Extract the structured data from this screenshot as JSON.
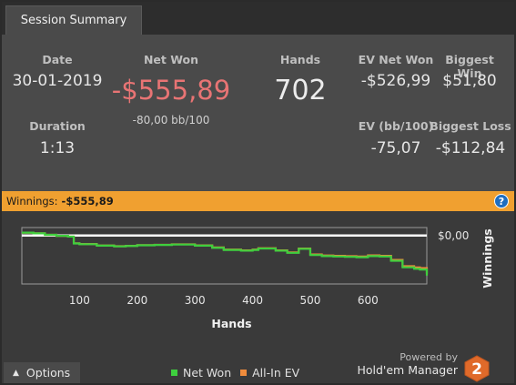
{
  "tab": {
    "label": "Session Summary"
  },
  "stats": {
    "date_label": "Date",
    "date_value": "30-01-2019",
    "net_won_label": "Net Won",
    "net_won_value": "-$555,89",
    "net_won_sub": "-80,00 bb/100",
    "hands_label": "Hands",
    "hands_value": "702",
    "ev_net_won_label": "EV Net Won",
    "ev_net_won_value": "-$526,99",
    "biggest_win_label": "Biggest Win",
    "biggest_win_value": "$51,80",
    "duration_label": "Duration",
    "duration_value": "1:13",
    "ev_bb_label": "EV (bb/100)",
    "ev_bb_value": "-75,07",
    "biggest_loss_label": "Biggest Loss",
    "biggest_loss_value": "-$112,84"
  },
  "winnings_bar": {
    "label": "Winnings:",
    "value": "-$555,89",
    "help_icon": "question-circle-icon"
  },
  "chart_data": {
    "type": "line",
    "xlabel": "Hands",
    "ylabel": "Winnings",
    "xlim": [
      0,
      702
    ],
    "ylim": [
      -620,
      60
    ],
    "x_ticks": [
      100,
      200,
      300,
      400,
      500,
      600
    ],
    "y_ticks": [
      {
        "value": 0,
        "label": "$0,00"
      }
    ],
    "x": [
      0,
      20,
      40,
      60,
      80,
      90,
      100,
      130,
      160,
      180,
      200,
      230,
      260,
      300,
      330,
      350,
      380,
      400,
      410,
      440,
      460,
      480,
      500,
      520,
      540,
      560,
      580,
      600,
      620,
      640,
      660,
      680,
      690,
      702
    ],
    "series": [
      {
        "name": "Net Won",
        "color": "#3ecf3e",
        "values": [
          40,
          30,
          10,
          -5,
          -15,
          -110,
          -120,
          -140,
          -150,
          -145,
          -135,
          -130,
          -125,
          -140,
          -170,
          -200,
          -210,
          -200,
          -180,
          -210,
          -240,
          -185,
          -270,
          -285,
          -290,
          -295,
          -300,
          -285,
          -290,
          -350,
          -440,
          -460,
          -470,
          -555.89
        ]
      },
      {
        "name": "All-In EV",
        "color": "#f08c3c",
        "values": [
          40,
          30,
          10,
          -5,
          -15,
          -108,
          -118,
          -138,
          -148,
          -142,
          -133,
          -128,
          -122,
          -136,
          -165,
          -195,
          -205,
          -195,
          -176,
          -205,
          -234,
          -180,
          -262,
          -276,
          -281,
          -286,
          -290,
          -275,
          -281,
          -338,
          -425,
          -442,
          -452,
          -526.99
        ]
      }
    ],
    "legend": [
      "Net Won",
      "All-In EV"
    ],
    "legend_position": "bottom-center",
    "grid": false
  },
  "footer": {
    "options_label": "Options",
    "legend_net_won": "Net Won",
    "legend_allin_ev": "All-In EV",
    "powered_by": "Powered by",
    "brand": "Hold'em Manager"
  }
}
